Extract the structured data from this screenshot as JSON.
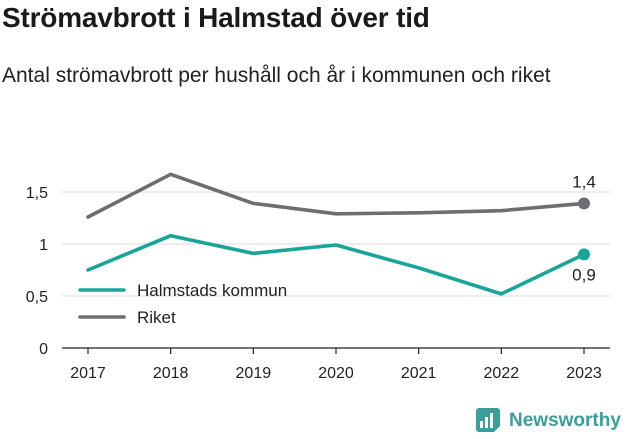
{
  "title": "Strömavbrott i Halmstad över tid",
  "subtitle": "Antal strömavbrott per hushåll och år i kommunen och riket",
  "brand": {
    "name": "Newsworthy",
    "icon": "newsworthy-logo-icon",
    "color": "#3a9e9a"
  },
  "chart_data": {
    "type": "line",
    "x": [
      "2017",
      "2018",
      "2019",
      "2020",
      "2021",
      "2022",
      "2023"
    ],
    "ylim": [
      0,
      1.6
    ],
    "yticks": [
      {
        "value": 0,
        "label": "0"
      },
      {
        "value": 0.5,
        "label": "0,5"
      },
      {
        "value": 1,
        "label": "1"
      },
      {
        "value": 1.5,
        "label": "1,5"
      }
    ],
    "grid": true,
    "legend_position": "bottom-left",
    "series": [
      {
        "name": "Halmstads kommun",
        "color": "#1aa59a",
        "values": [
          0.75,
          1.08,
          0.91,
          0.99,
          0.77,
          0.52,
          0.9
        ],
        "end_label": "0,9"
      },
      {
        "name": "Riket",
        "color": "#6d6d72",
        "values": [
          1.26,
          1.67,
          1.39,
          1.29,
          1.3,
          1.32,
          1.39
        ],
        "end_label": "1,4"
      }
    ]
  }
}
